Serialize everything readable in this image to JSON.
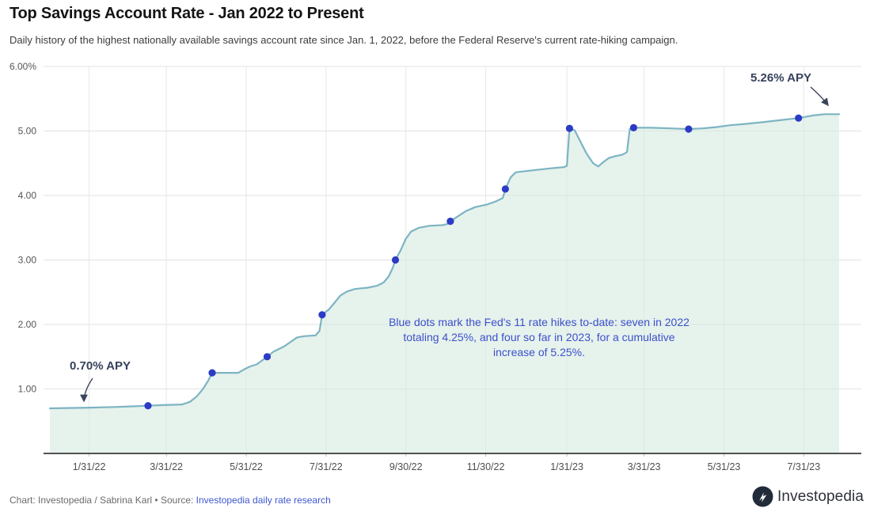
{
  "header": {
    "title": "Top Savings Account Rate - Jan 2022 to Present",
    "subtitle": "Daily history of the highest nationally available savings account rate since Jan. 1, 2022, before the Federal Reserve's current rate-hiking campaign."
  },
  "chart_data": {
    "type": "area",
    "title": "Top Savings Account Rate - Jan 2022 to Present",
    "xlabel": "",
    "ylabel": "",
    "x_domain": [
      "2022-01-01",
      "2023-08-27"
    ],
    "ylim": [
      0,
      6
    ],
    "grid": true,
    "yticks": [
      {
        "value": 6,
        "label": "6.00%"
      },
      {
        "value": 5,
        "label": "5.00"
      },
      {
        "value": 4,
        "label": "4.00"
      },
      {
        "value": 3,
        "label": "3.00"
      },
      {
        "value": 2,
        "label": "2.00"
      },
      {
        "value": 1,
        "label": "1.00"
      }
    ],
    "xticks": [
      {
        "date": "2022-01-31",
        "label": "1/31/22"
      },
      {
        "date": "2022-03-31",
        "label": "3/31/22"
      },
      {
        "date": "2022-05-31",
        "label": "5/31/22"
      },
      {
        "date": "2022-07-31",
        "label": "7/31/22"
      },
      {
        "date": "2022-09-30",
        "label": "9/30/22"
      },
      {
        "date": "2022-11-30",
        "label": "11/30/22"
      },
      {
        "date": "2023-01-31",
        "label": "1/31/23"
      },
      {
        "date": "2023-03-31",
        "label": "3/31/23"
      },
      {
        "date": "2023-05-31",
        "label": "5/31/23"
      },
      {
        "date": "2023-07-31",
        "label": "7/31/23"
      }
    ],
    "line": [
      [
        "2022-01-01",
        0.7
      ],
      [
        "2022-02-01",
        0.71
      ],
      [
        "2022-02-20",
        0.72
      ],
      [
        "2022-03-05",
        0.73
      ],
      [
        "2022-03-17",
        0.74
      ],
      [
        "2022-03-28",
        0.75
      ],
      [
        "2022-04-12",
        0.76
      ],
      [
        "2022-04-18",
        0.8
      ],
      [
        "2022-04-23",
        0.88
      ],
      [
        "2022-04-28",
        1.0
      ],
      [
        "2022-05-02",
        1.13
      ],
      [
        "2022-05-05",
        1.25
      ],
      [
        "2022-05-25",
        1.25
      ],
      [
        "2022-05-30",
        1.31
      ],
      [
        "2022-06-03",
        1.35
      ],
      [
        "2022-06-08",
        1.38
      ],
      [
        "2022-06-12",
        1.44
      ],
      [
        "2022-06-16",
        1.5
      ],
      [
        "2022-06-21",
        1.58
      ],
      [
        "2022-06-25",
        1.62
      ],
      [
        "2022-06-29",
        1.66
      ],
      [
        "2022-07-04",
        1.73
      ],
      [
        "2022-07-09",
        1.8
      ],
      [
        "2022-07-15",
        1.82
      ],
      [
        "2022-07-23",
        1.83
      ],
      [
        "2022-07-26",
        1.9
      ],
      [
        "2022-07-28",
        2.15
      ],
      [
        "2022-08-02",
        2.23
      ],
      [
        "2022-08-07",
        2.35
      ],
      [
        "2022-08-11",
        2.45
      ],
      [
        "2022-08-16",
        2.51
      ],
      [
        "2022-08-22",
        2.55
      ],
      [
        "2022-09-01",
        2.57
      ],
      [
        "2022-09-08",
        2.6
      ],
      [
        "2022-09-13",
        2.65
      ],
      [
        "2022-09-17",
        2.75
      ],
      [
        "2022-09-20",
        2.88
      ],
      [
        "2022-09-22",
        3.0
      ],
      [
        "2022-09-26",
        3.15
      ],
      [
        "2022-09-30",
        3.33
      ],
      [
        "2022-10-04",
        3.44
      ],
      [
        "2022-10-10",
        3.5
      ],
      [
        "2022-10-18",
        3.53
      ],
      [
        "2022-10-28",
        3.54
      ],
      [
        "2022-11-01",
        3.56
      ],
      [
        "2022-11-03",
        3.6
      ],
      [
        "2022-11-09",
        3.68
      ],
      [
        "2022-11-15",
        3.76
      ],
      [
        "2022-11-22",
        3.82
      ],
      [
        "2022-12-01",
        3.86
      ],
      [
        "2022-12-08",
        3.91
      ],
      [
        "2022-12-13",
        3.96
      ],
      [
        "2022-12-15",
        4.1
      ],
      [
        "2022-12-19",
        4.28
      ],
      [
        "2022-12-23",
        4.36
      ],
      [
        "2023-01-05",
        4.39
      ],
      [
        "2023-01-18",
        4.42
      ],
      [
        "2023-01-29",
        4.44
      ],
      [
        "2023-01-31",
        4.46
      ],
      [
        "2023-02-02",
        5.04
      ],
      [
        "2023-02-06",
        5.01
      ],
      [
        "2023-02-10",
        4.85
      ],
      [
        "2023-02-15",
        4.65
      ],
      [
        "2023-02-20",
        4.5
      ],
      [
        "2023-02-24",
        4.45
      ],
      [
        "2023-02-28",
        4.52
      ],
      [
        "2023-03-04",
        4.58
      ],
      [
        "2023-03-09",
        4.61
      ],
      [
        "2023-03-14",
        4.63
      ],
      [
        "2023-03-17",
        4.66
      ],
      [
        "2023-03-18",
        4.68
      ],
      [
        "2023-03-20",
        5.03
      ],
      [
        "2023-03-23",
        5.05
      ],
      [
        "2023-04-05",
        5.05
      ],
      [
        "2023-04-20",
        5.04
      ],
      [
        "2023-05-04",
        5.03
      ],
      [
        "2023-05-15",
        5.04
      ],
      [
        "2023-05-25",
        5.06
      ],
      [
        "2023-06-05",
        5.09
      ],
      [
        "2023-06-17",
        5.11
      ],
      [
        "2023-07-01",
        5.14
      ],
      [
        "2023-07-14",
        5.17
      ],
      [
        "2023-07-27",
        5.2
      ],
      [
        "2023-08-07",
        5.24
      ],
      [
        "2023-08-16",
        5.26
      ],
      [
        "2023-08-27",
        5.26
      ]
    ],
    "rate_hike_dots": [
      {
        "date": "2022-03-17",
        "value": 0.74
      },
      {
        "date": "2022-05-05",
        "value": 1.25
      },
      {
        "date": "2022-06-16",
        "value": 1.5
      },
      {
        "date": "2022-07-28",
        "value": 2.15
      },
      {
        "date": "2022-09-22",
        "value": 3.0
      },
      {
        "date": "2022-11-03",
        "value": 3.6
      },
      {
        "date": "2022-12-15",
        "value": 4.1
      },
      {
        "date": "2023-02-02",
        "value": 5.04
      },
      {
        "date": "2023-03-23",
        "value": 5.05
      },
      {
        "date": "2023-05-04",
        "value": 5.03
      },
      {
        "date": "2023-07-27",
        "value": 5.2
      }
    ],
    "annotations": {
      "start_label": "0.70% APY",
      "end_label": "5.26% APY",
      "note_lines": [
        "Blue dots mark the Fed's 11 rate hikes to-date: seven in 2022",
        "totaling 4.25%, and four so far in 2023, for a cumulative",
        "increase of 5.25%."
      ]
    },
    "colors": {
      "line": "#7db4c3",
      "fill": "#d7eae0",
      "dot": "#2c3bc5",
      "note_text": "#3c50cc",
      "annotation_label": "#36415c",
      "grid_h": "#e2e2e2",
      "grid_v": "#e7e7e7",
      "axis": "#1a1a1a",
      "axis_label": "#555555",
      "link_blue": "#4059d0"
    }
  },
  "footer": {
    "credit_prefix": "Chart: Investopedia / Sabrina Karl • Source: ",
    "source_link": "Investopedia daily rate research",
    "logo_text": "Investopedia"
  }
}
